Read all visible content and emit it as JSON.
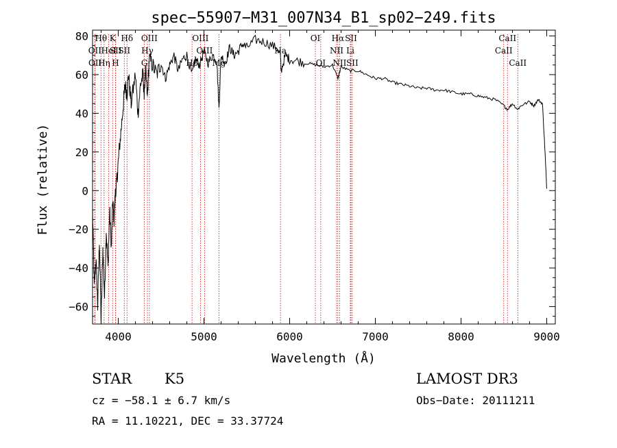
{
  "chart_data": {
    "type": "line",
    "title": "spec−55907−M31_007N34_B1_sp02−249.fits",
    "xlabel": "Wavelength (Å)",
    "ylabel": "Flux (relative)",
    "xlim": [
      3700,
      9100
    ],
    "ylim": [
      -69,
      83
    ],
    "xticks": [
      4000,
      5000,
      6000,
      7000,
      8000,
      9000
    ],
    "yticks": [
      -60,
      -40,
      -20,
      0,
      20,
      40,
      60,
      80
    ],
    "ytick_labels": [
      "−60",
      "−40",
      "−20",
      "0",
      "20",
      "40",
      "60",
      "80"
    ],
    "grid": false,
    "line_color": "#000000",
    "marker_color": "#cc0000",
    "spectrum": {
      "x": [
        3700,
        3720,
        3740,
        3760,
        3780,
        3800,
        3820,
        3840,
        3860,
        3880,
        3900,
        3920,
        3935,
        3950,
        3968,
        3985,
        4000,
        4030,
        4060,
        4080,
        4102,
        4120,
        4150,
        4200,
        4230,
        4260,
        4290,
        4300,
        4320,
        4340,
        4360,
        4400,
        4450,
        4500,
        4550,
        4600,
        4650,
        4700,
        4750,
        4800,
        4861,
        4900,
        4950,
        5000,
        5050,
        5100,
        5150,
        5175,
        5200,
        5250,
        5300,
        5350,
        5400,
        5450,
        5500,
        5600,
        5700,
        5800,
        5890,
        5900,
        5950,
        6000,
        6100,
        6200,
        6300,
        6400,
        6500,
        6563,
        6600,
        6700,
        6800,
        6900,
        7000,
        7100,
        7200,
        7300,
        7400,
        7500,
        7600,
        7700,
        7800,
        7900,
        8000,
        8100,
        8200,
        8300,
        8400,
        8498,
        8542,
        8600,
        8662,
        8700,
        8800,
        8850,
        8900,
        8950,
        8980,
        9000
      ],
      "y": [
        -10,
        -50,
        -35,
        -60,
        -25,
        -68,
        -30,
        -55,
        -20,
        -40,
        -10,
        -30,
        -5,
        -15,
        0,
        5,
        15,
        30,
        45,
        55,
        50,
        60,
        45,
        60,
        40,
        55,
        60,
        50,
        62,
        48,
        68,
        65,
        60,
        66,
        58,
        65,
        70,
        62,
        68,
        70,
        60,
        68,
        65,
        72,
        66,
        70,
        68,
        42,
        70,
        66,
        74,
        70,
        72,
        76,
        74,
        78,
        77,
        75,
        72,
        62,
        70,
        68,
        67,
        66,
        65,
        64,
        65,
        58,
        64,
        62,
        62,
        60,
        58,
        58,
        56,
        55,
        54,
        53,
        53,
        52,
        52,
        51,
        50,
        50,
        49,
        48,
        47,
        44,
        42,
        45,
        42,
        44,
        46,
        44,
        47,
        45,
        20,
        1
      ]
    },
    "line_markers": [
      {
        "label": "Hθ",
        "x": 3798,
        "row": 1
      },
      {
        "label": "OII",
        "x": 3727,
        "row": 2
      },
      {
        "label": "OII",
        "x": 3729,
        "row": 3
      },
      {
        "label": "Hη",
        "x": 3835,
        "row": 3
      },
      {
        "label": "HeI",
        "x": 3889,
        "row": 2
      },
      {
        "label": "K",
        "x": 3934,
        "row": 1
      },
      {
        "label": "SII",
        "x": 3970,
        "row": 2
      },
      {
        "label": "H",
        "x": 3968,
        "row": 3
      },
      {
        "label": "Hδ",
        "x": 4102,
        "row": 1
      },
      {
        "label": "SII",
        "x": 4070,
        "row": 2
      },
      {
        "label": "OIII",
        "x": 4363,
        "row": 1
      },
      {
        "label": "Hγ",
        "x": 4340,
        "row": 2
      },
      {
        "label": "G",
        "x": 4305,
        "row": 3
      },
      {
        "label": "OIII",
        "x": 4959,
        "row": 1
      },
      {
        "label": "OIII",
        "x": 5007,
        "row": 2
      },
      {
        "label": "Hβ",
        "x": 4861,
        "row": 3
      },
      {
        "label": "Mg",
        "x": 5175,
        "row": 3
      },
      {
        "label": "Na",
        "x": 5893,
        "row": 2
      },
      {
        "label": "OI",
        "x": 6300,
        "row": 1
      },
      {
        "label": "OI",
        "x": 6363,
        "row": 3
      },
      {
        "label": "Hα",
        "x": 6563,
        "row": 1
      },
      {
        "label": "NII",
        "x": 6548,
        "row": 2
      },
      {
        "label": "NII",
        "x": 6583,
        "row": 3
      },
      {
        "label": "SII",
        "x": 6716,
        "row": 1
      },
      {
        "label": "Li",
        "x": 6708,
        "row": 2
      },
      {
        "label": "SII",
        "x": 6731,
        "row": 3
      },
      {
        "label": "CaII",
        "x": 8542,
        "row": 1
      },
      {
        "label": "CaII",
        "x": 8498,
        "row": 2
      },
      {
        "label": "CaII",
        "x": 8662,
        "row": 3
      }
    ]
  },
  "info": {
    "object_class": "STAR",
    "subclass": "K5",
    "survey": "LAMOST DR3",
    "redshift": "cz = −58.1 ± 6.7 km/s",
    "obs_date": "Obs−Date: 20111211",
    "coords": "RA =  11.10221, DEC =  33.37724"
  }
}
